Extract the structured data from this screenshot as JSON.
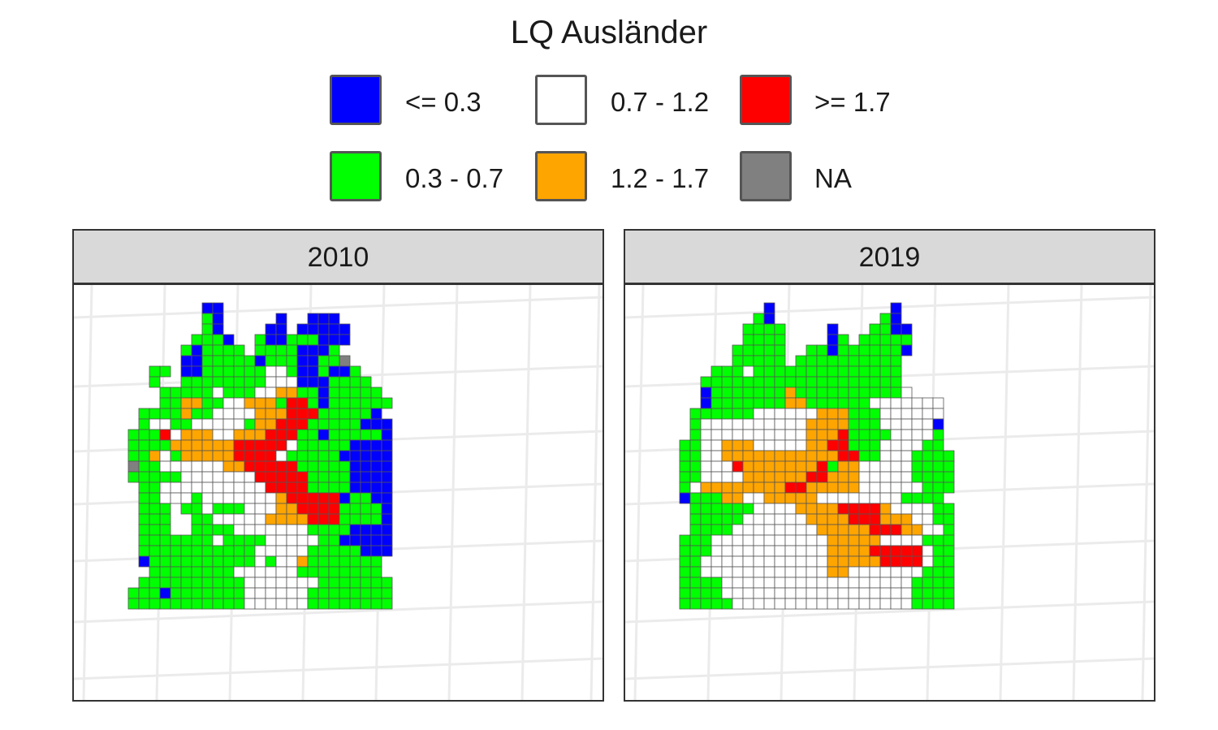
{
  "legend": {
    "title": "LQ Ausländer",
    "items": [
      {
        "id": "lte03",
        "label": "<= 0.3",
        "color": "#0000ff"
      },
      {
        "id": "mid1",
        "label": "0.7 - 1.2",
        "color": "#ffffff"
      },
      {
        "id": "gte17",
        "label": ">= 1.7",
        "color": "#ff0000"
      },
      {
        "id": "low",
        "label": "0.3 - 0.7",
        "color": "#00ff00"
      },
      {
        "id": "mid2",
        "label": "1.2 - 1.7",
        "color": "#ffa500"
      },
      {
        "id": "na",
        "label": "NA",
        "color": "#808080"
      }
    ]
  },
  "panels": [
    {
      "label": "2010"
    },
    {
      "label": "2019"
    }
  ],
  "grid_code": {
    "B": "<= 0.3",
    "g": "0.3 - 0.7",
    "w": "0.7 - 1.2",
    "o": "1.2 - 1.7",
    "r": ">= 1.7",
    "n": "NA"
  },
  "grids": [
    [
      "..........BB................",
      "..........gB.....B..BBB.....",
      "..........gB....BB.BBBBB....",
      ".........gggB..gBBgggBBB....",
      "........gBgggg.ggggBBBg.....",
      "........BBgggggBgggBBggn....",
      ".....gg.BBggggggwwgBBgBBg...",
      ".....g..ggggggggwwwBBBgggg..",
      "......gggggwgggwwooggBggggg.",
      "......ggooggwwooogrrgBgggggg",
      "....ggggoggwwwwooorrrgggggB.",
      "....gwwggwwwwwgoorrrgggggBBB",
      "...gggrwooowwooorrrggBgggggB",
      "...ggggoooooorrrrrwgggggBBBB",
      "...ggowgooooorrrrwgggggBBBBB",
      "...nggwwwwwwoorrrrrgggggBBBB",
      "...gggggwwwwwwwrrrrrggggBBBB",
      "....gg.wwwwwwwwwrrrrggggBBBB",
      "....ggwwwgwwwwwwworrrrrBggBB",
      "....ggg.ggwgggwwwoorrrrggggB",
      "....ggg..ggwwwwwoooorrrggggB",
      "....ggg..ggggwwwwwwwggggBBBB",
      "....gggggggwggggwwwwwggBBBBB",
      "....gggggggggggwwwwwgggggBBB",
      "....Bggggggggggwgwwoggggggg.",
      ".....ggggggggwwwwwwgggggggg.",
      "....ggggggggggwwwwwwwggggggg",
      "...gggBgggggggwwwwwwgggggggg",
      "...gggggggggggwwwwwwgggggggg"
    ],
    [
      "...........B...........B....",
      "..........gB..........gB....",
      ".........gggg....B...ggBB...",
      ".........gggg....Bg.ggggg...",
      "........ggggg..ggBggggggB...",
      "........ggggg.gggggggggg....",
      "......ggg.gggggggggggggg....",
      ".....ggggggggggggggggggg....",
      ".....Bgggggggoggggggggggw...",
      ".....Bgggggggooggggggwwwwwww",
      "....ggggggwwwwwwooogggwwwwww",
      "....gwwwwwwwwwwoooogggwwwwwB",
      "....gwwwwwwwwwwooorggggwwwwg",
      "...ggwwooowwwwwoorrgggwwwwgg",
      "...ggwwooooooooooorrggwwwgggg",
      "...ggwwwrooooooorgoowwwwwgggg",
      "...ggwwwwoooooorrooowwwwwgggg",
      "...gwoooooooorrooooowwwwwwggg",
      "...Bgggoowwooooowwwwwwwwgggg.",
      "....ggggggwwwwoooorrrrowwwwgg",
      "....gggggwwwwwwoooorrrooowwgg",
      "....ggggwwwwwwwwooooorrroowwg",
      "...gggwwwwwwwwwwwooooowwwwggg",
      "...gggwwwwwwwwwwwoooorrrrrwgg",
      "...ggwwwwwwwwwwwwooooorrrrwgg",
      "...ggwwwwwwwwwwwwoowwwwwwwggg",
      "...ggggwwwwwwwwwwwwwwwwwwgggg",
      "...ggggwwwwwwwwwwwwwwwwwwgggg",
      "...gggggwwwwwwwwwwwwwwwwwgggg"
    ]
  ]
}
